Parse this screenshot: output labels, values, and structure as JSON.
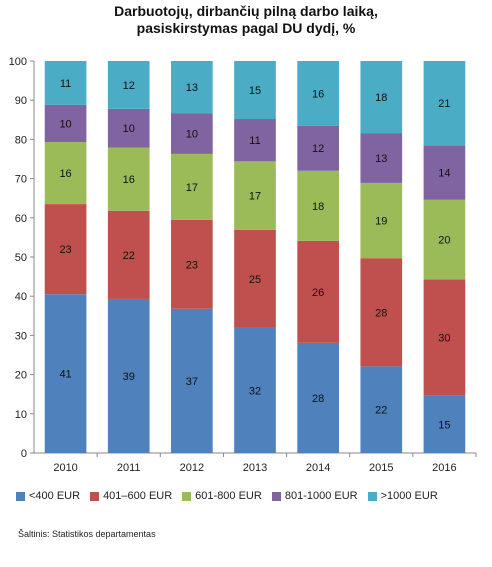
{
  "chart_data": {
    "type": "bar",
    "stacked": true,
    "title_line1": "Darbuotojų, dirbančių pilną darbo laiką,",
    "title_line2": "pasiskirstymas  pagal DU dydį, %",
    "categories": [
      "2010",
      "2011",
      "2012",
      "2013",
      "2014",
      "2015",
      "2016"
    ],
    "series": [
      {
        "name": "<400 EUR",
        "color": "#4F81BD",
        "values": [
          41,
          39,
          37,
          32,
          28,
          22,
          15
        ]
      },
      {
        "name": "401–600 EUR",
        "color": "#C0504D",
        "values": [
          23,
          22,
          23,
          25,
          26,
          28,
          30
        ]
      },
      {
        "name": "601-800 EUR",
        "color": "#9BBB59",
        "values": [
          16,
          16,
          17,
          17,
          18,
          19,
          20
        ]
      },
      {
        "name": "801-1000 EUR",
        "color": "#8064A2",
        "values": [
          10,
          10,
          10,
          11,
          12,
          13,
          14
        ]
      },
      {
        "name": ">1000 EUR",
        "color": "#4BACC6",
        "values": [
          11,
          12,
          13,
          15,
          16,
          18,
          21
        ]
      }
    ],
    "segment_tops": [
      [
        40.5,
        63.5,
        79.3,
        88.8,
        100
      ],
      [
        39.3,
        61.8,
        77.9,
        87.8,
        100
      ],
      [
        36.8,
        59.5,
        76.3,
        86.7,
        100
      ],
      [
        32.0,
        56.9,
        74.4,
        85.2,
        100
      ],
      [
        28.1,
        54.1,
        72.0,
        83.5,
        100
      ],
      [
        22.1,
        49.7,
        68.9,
        81.6,
        100
      ],
      [
        14.6,
        44.3,
        64.6,
        78.5,
        100
      ]
    ],
    "ylim": [
      0,
      100
    ],
    "yticks": [
      0,
      10,
      20,
      30,
      40,
      50,
      60,
      70,
      80,
      90,
      100
    ],
    "grid": false,
    "legend_position": "bottom"
  },
  "source_text": "Šaltinis: Statistikos departamentas"
}
